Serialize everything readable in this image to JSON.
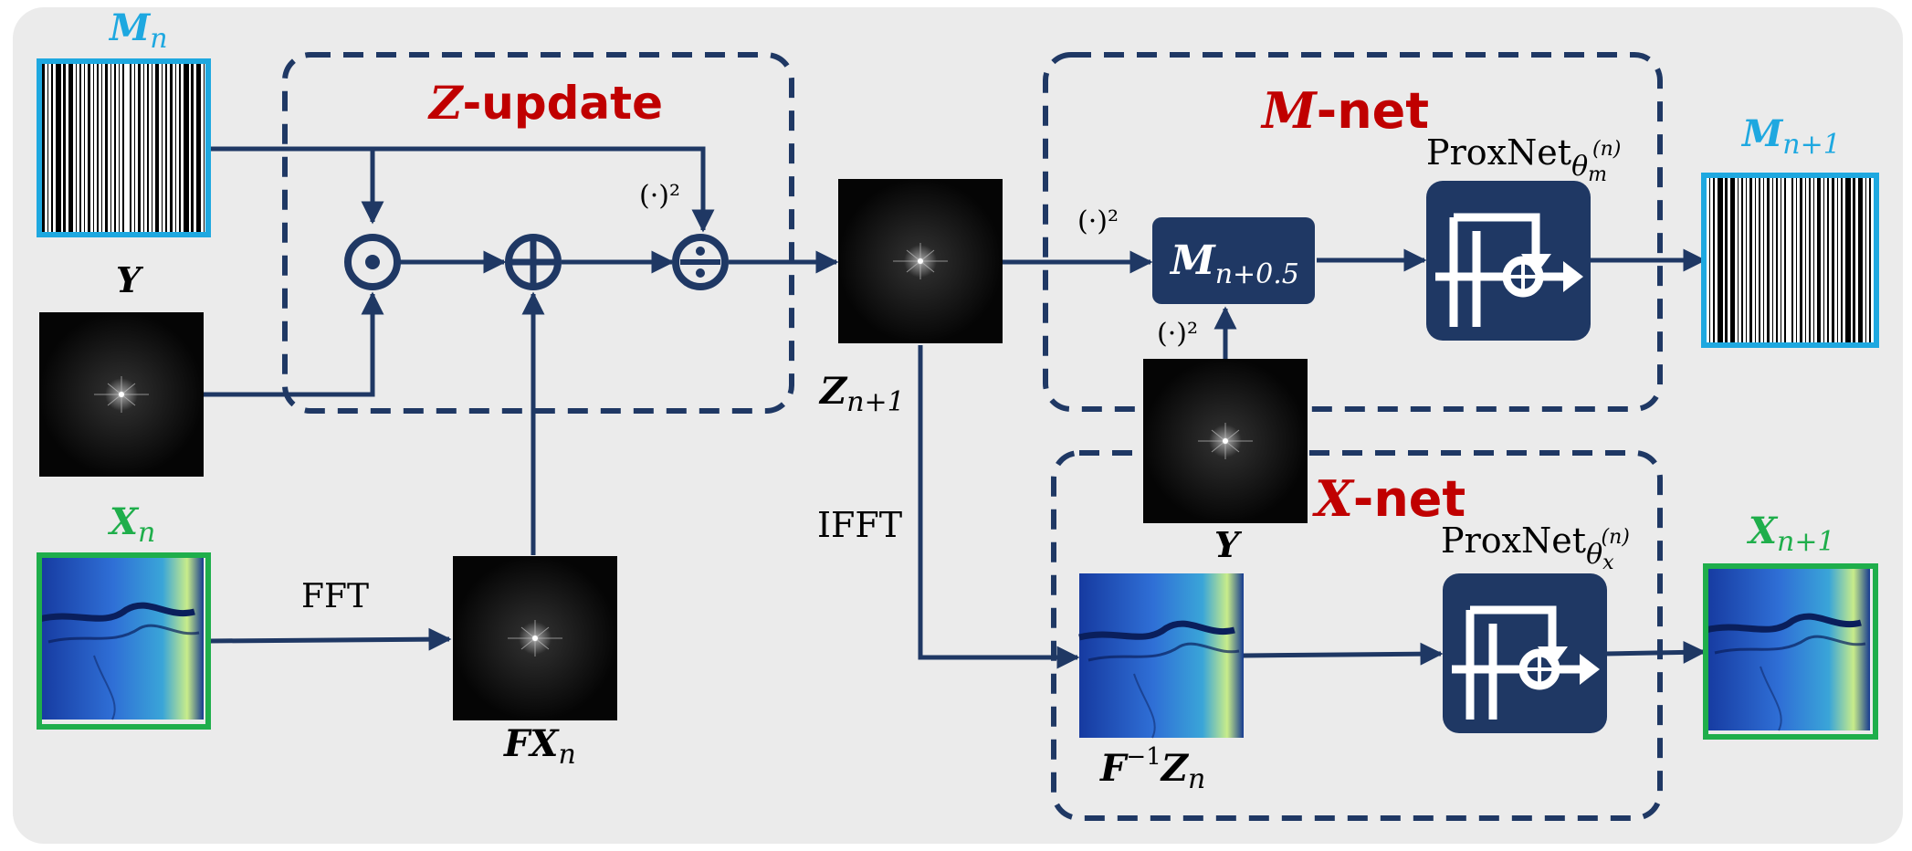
{
  "colors": {
    "background": "#ebebeb",
    "navy": "#1f3864",
    "cyan": "#1ea8e0",
    "green": "#1fae4b",
    "red": "#c00000",
    "black": "#000000"
  },
  "inputs": {
    "mask_label": {
      "main": "M",
      "sub": "n"
    },
    "y_label": "Y",
    "x_label": {
      "main": "X",
      "sub": "n"
    }
  },
  "z_update": {
    "title_var": "Z",
    "title_text": "-update",
    "square_label": "(·)²"
  },
  "fft": {
    "label": "FFT",
    "output_label": {
      "main": "FX",
      "sub": "n"
    }
  },
  "z_output": {
    "main": "Z",
    "sub": "n+1"
  },
  "ifft_label": "IFFT",
  "m_net": {
    "title_var": "M",
    "title_text": "-net",
    "square_label_top": "(·)²",
    "square_label_bottom": "(·)²",
    "half_step": {
      "main": "M",
      "sub": "n+0.5"
    },
    "proxnet": {
      "base": "ProxNet",
      "theta": "θ",
      "sub": "m",
      "sup": "(n)"
    },
    "output": {
      "main": "M",
      "sub": "n+1"
    }
  },
  "x_net": {
    "title_var": "X",
    "title_text": "-net",
    "y_label": "Y",
    "inverse_label": {
      "op": "F",
      "sup": "−1",
      "var": "Z",
      "sub": "n"
    },
    "proxnet": {
      "base": "ProxNet",
      "theta": "θ",
      "sub": "x",
      "sup": "(n)"
    },
    "output": {
      "main": "X",
      "sub": "n+1"
    }
  }
}
